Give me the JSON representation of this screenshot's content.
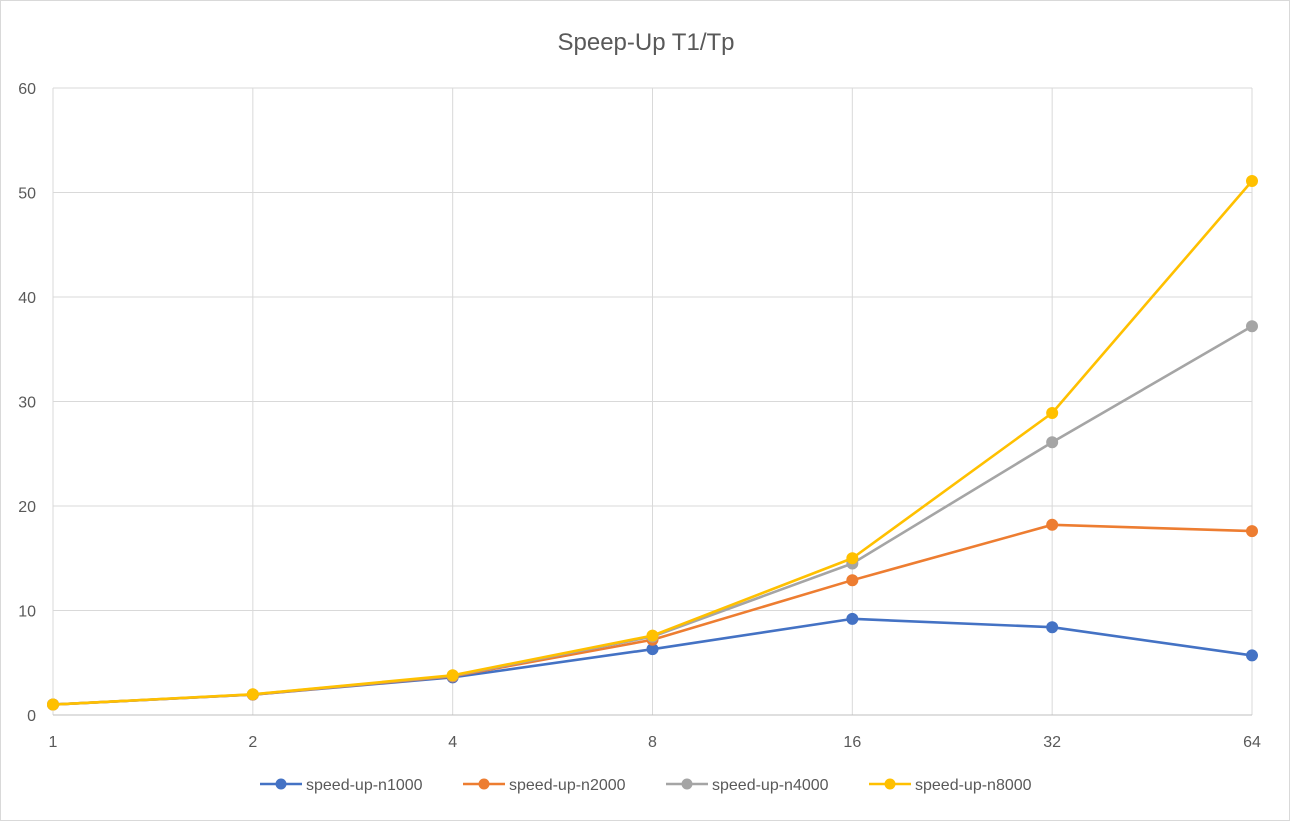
{
  "chart_data": {
    "type": "line",
    "title": "Speep-Up T1/Tp",
    "xlabel": "",
    "ylabel": "",
    "categories": [
      "1",
      "2",
      "4",
      "8",
      "16",
      "32",
      "64"
    ],
    "ylim": [
      0,
      60
    ],
    "yticks": [
      0,
      10,
      20,
      30,
      40,
      50,
      60
    ],
    "grid": true,
    "legend_position": "bottom",
    "series": [
      {
        "name": "speed-up-n1000",
        "color": "#4472c4",
        "values": [
          1,
          1.95,
          3.6,
          6.3,
          9.2,
          8.4,
          5.7
        ]
      },
      {
        "name": "speed-up-n2000",
        "color": "#ed7d31",
        "values": [
          1,
          1.95,
          3.7,
          7.2,
          12.9,
          18.2,
          17.6
        ]
      },
      {
        "name": "speed-up-n4000",
        "color": "#a5a5a5",
        "values": [
          1,
          1.97,
          3.75,
          7.5,
          14.5,
          26.1,
          37.2
        ]
      },
      {
        "name": "speed-up-n8000",
        "color": "#ffc000",
        "values": [
          1,
          1.98,
          3.8,
          7.6,
          15.0,
          28.9,
          51.1
        ]
      }
    ]
  }
}
